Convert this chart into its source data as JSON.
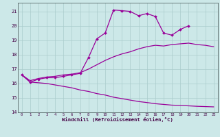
{
  "bg_color": "#cce8e8",
  "line_color": "#990099",
  "grid_color": "#aacccc",
  "xlim": [
    -0.5,
    23.5
  ],
  "ylim": [
    14.0,
    21.6
  ],
  "yticks": [
    14,
    15,
    16,
    17,
    18,
    19,
    20,
    21
  ],
  "xticks": [
    0,
    1,
    2,
    3,
    4,
    5,
    6,
    7,
    8,
    9,
    10,
    11,
    12,
    13,
    14,
    15,
    16,
    17,
    18,
    19,
    20,
    21,
    22,
    23
  ],
  "xlabel": "Windchill (Refroidissement éolien,°C)",
  "line1_x": [
    0,
    1,
    2,
    3,
    4,
    5,
    6,
    7,
    8,
    9,
    10,
    11,
    12,
    13,
    14,
    15,
    16,
    17,
    18,
    19,
    20
  ],
  "line1_y": [
    16.6,
    16.1,
    16.3,
    16.4,
    16.4,
    16.5,
    16.6,
    16.7,
    17.8,
    19.1,
    19.5,
    21.1,
    21.05,
    21.0,
    20.7,
    20.85,
    20.65,
    19.5,
    19.35,
    19.75,
    20.0
  ],
  "line2_x": [
    0,
    1,
    2,
    3,
    4,
    5,
    6,
    7,
    8,
    9,
    10,
    11,
    12,
    13,
    14,
    15,
    16,
    17,
    18,
    19,
    20,
    21,
    22,
    23
  ],
  "line2_y": [
    16.6,
    16.2,
    16.35,
    16.45,
    16.5,
    16.6,
    16.65,
    16.75,
    17.0,
    17.3,
    17.6,
    17.85,
    18.05,
    18.2,
    18.4,
    18.55,
    18.65,
    18.6,
    18.7,
    18.75,
    18.8,
    18.7,
    18.65,
    18.55
  ],
  "line3_x": [
    0,
    1,
    2,
    3,
    4,
    5,
    6,
    7,
    8,
    9,
    10,
    11,
    12,
    13,
    14,
    15,
    16,
    17,
    18,
    19,
    20,
    21,
    22,
    23
  ],
  "line3_y": [
    16.6,
    16.1,
    16.05,
    16.0,
    15.9,
    15.8,
    15.7,
    15.55,
    15.45,
    15.3,
    15.2,
    15.05,
    14.95,
    14.85,
    14.75,
    14.68,
    14.6,
    14.55,
    14.5,
    14.48,
    14.45,
    14.42,
    14.4,
    14.38
  ]
}
